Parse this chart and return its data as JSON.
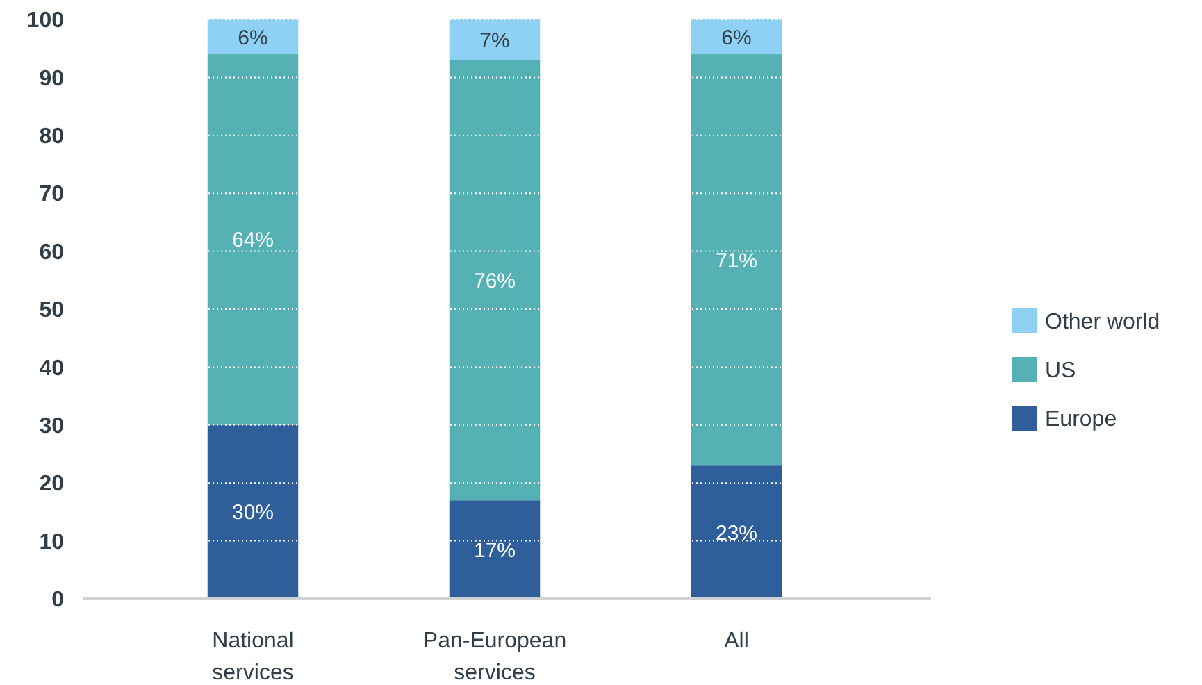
{
  "chart_data": {
    "type": "bar",
    "stacked": true,
    "categories": [
      "National services",
      "Pan-European services",
      "All"
    ],
    "series": [
      {
        "name": "Europe",
        "color": "#2e5f9a",
        "values": [
          30,
          17,
          23
        ],
        "value_labels": [
          "30%",
          "17%",
          "23%"
        ]
      },
      {
        "name": "US",
        "color": "#55b1b3",
        "values": [
          64,
          76,
          71
        ],
        "value_labels": [
          "64%",
          "76%",
          "71%"
        ]
      },
      {
        "name": "Other world",
        "color": "#8fd0f5",
        "values": [
          6,
          7,
          6
        ],
        "value_labels": [
          "6%",
          "7%",
          "6%"
        ]
      }
    ],
    "ylim": [
      0,
      100
    ],
    "yticks": [
      0,
      10,
      20,
      30,
      40,
      50,
      60,
      70,
      80,
      90,
      100
    ],
    "grid": "y",
    "legend": "right"
  }
}
